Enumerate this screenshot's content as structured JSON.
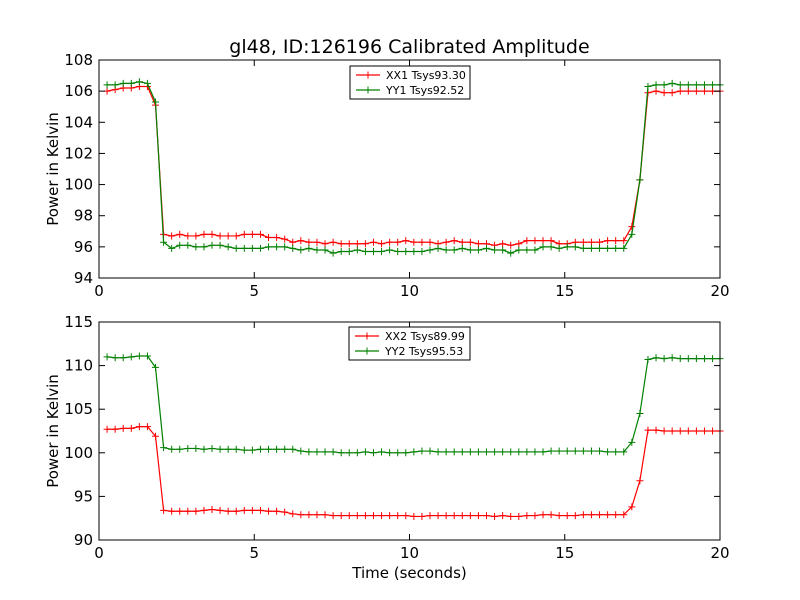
{
  "chart_data": [
    {
      "type": "line",
      "title": "gl48, ID:126196 Calibrated Amplitude",
      "xlabel": "",
      "ylabel": "Power in Kelvin",
      "xlim": [
        0,
        20
      ],
      "ylim": [
        94,
        108
      ],
      "xticks": [
        0,
        5,
        10,
        15,
        20
      ],
      "yticks": [
        94,
        96,
        98,
        100,
        102,
        104,
        106,
        108
      ],
      "grid": false,
      "legend_position": "top-center",
      "marker": "+",
      "x": [
        0.26,
        0.52,
        0.78,
        1.04,
        1.3,
        1.56,
        1.82,
        2.08,
        2.34,
        2.6,
        2.86,
        3.12,
        3.38,
        3.64,
        3.9,
        4.16,
        4.42,
        4.68,
        4.94,
        5.2,
        5.46,
        5.72,
        5.98,
        6.24,
        6.5,
        6.76,
        7.02,
        7.28,
        7.54,
        7.8,
        8.06,
        8.32,
        8.58,
        8.84,
        9.1,
        9.36,
        9.62,
        9.88,
        10.14,
        10.4,
        10.66,
        10.92,
        11.18,
        11.44,
        11.7,
        11.96,
        12.22,
        12.48,
        12.74,
        13.0,
        13.26,
        13.52,
        13.78,
        14.04,
        14.3,
        14.56,
        14.82,
        15.08,
        15.34,
        15.6,
        15.86,
        16.12,
        16.38,
        16.64,
        16.9,
        17.16,
        17.42,
        17.68,
        17.94,
        18.2,
        18.46,
        18.72,
        18.98,
        19.24,
        19.5,
        19.76,
        20.0
      ],
      "series": [
        {
          "name": "XX1 Tsys93.30",
          "color": "#ff0000",
          "values": [
            106.0,
            106.1,
            106.2,
            106.2,
            106.3,
            106.3,
            105.1,
            96.8,
            96.7,
            96.8,
            96.7,
            96.7,
            96.8,
            96.8,
            96.7,
            96.7,
            96.7,
            96.8,
            96.8,
            96.8,
            96.6,
            96.6,
            96.5,
            96.3,
            96.4,
            96.3,
            96.3,
            96.2,
            96.3,
            96.2,
            96.2,
            96.2,
            96.2,
            96.3,
            96.2,
            96.3,
            96.3,
            96.4,
            96.3,
            96.3,
            96.3,
            96.2,
            96.3,
            96.4,
            96.3,
            96.3,
            96.2,
            96.2,
            96.1,
            96.2,
            96.1,
            96.2,
            96.4,
            96.4,
            96.4,
            96.4,
            96.2,
            96.2,
            96.3,
            96.3,
            96.3,
            96.3,
            96.4,
            96.4,
            96.4,
            97.3,
            100.3,
            105.9,
            106.0,
            105.9,
            105.9,
            106.0,
            106.0,
            106.0,
            106.0,
            106.0,
            106.0
          ],
          "_note": "values index-aligned with x"
        },
        {
          "name": "YY1 Tsys92.52",
          "color": "#008000",
          "values": [
            106.4,
            106.4,
            106.5,
            106.5,
            106.6,
            106.5,
            105.3,
            96.3,
            95.9,
            96.1,
            96.1,
            96.0,
            96.0,
            96.1,
            96.1,
            96.0,
            95.9,
            95.9,
            95.9,
            95.9,
            96.0,
            96.0,
            96.0,
            95.9,
            95.8,
            95.9,
            95.8,
            95.8,
            95.6,
            95.7,
            95.7,
            95.8,
            95.7,
            95.7,
            95.7,
            95.8,
            95.7,
            95.7,
            95.7,
            95.7,
            95.8,
            95.9,
            95.8,
            95.8,
            95.9,
            95.8,
            95.8,
            95.9,
            95.8,
            95.8,
            95.6,
            95.8,
            95.8,
            95.8,
            96.0,
            96.0,
            95.9,
            96.0,
            96.0,
            95.9,
            95.9,
            95.9,
            95.9,
            95.9,
            95.9,
            96.8,
            100.3,
            106.3,
            106.4,
            106.4,
            106.5,
            106.4,
            106.4,
            106.4,
            106.4,
            106.4,
            106.4
          ]
        }
      ]
    },
    {
      "type": "line",
      "title": "",
      "xlabel": "Time (seconds)",
      "ylabel": "Power in Kelvin",
      "xlim": [
        0,
        20
      ],
      "ylim": [
        90,
        115
      ],
      "xticks": [
        0,
        5,
        10,
        15,
        20
      ],
      "yticks": [
        90,
        95,
        100,
        105,
        110,
        115
      ],
      "grid": false,
      "legend_position": "top-center",
      "marker": "+",
      "x": [
        0.26,
        0.52,
        0.78,
        1.04,
        1.3,
        1.56,
        1.82,
        2.08,
        2.34,
        2.6,
        2.86,
        3.12,
        3.38,
        3.64,
        3.9,
        4.16,
        4.42,
        4.68,
        4.94,
        5.2,
        5.46,
        5.72,
        5.98,
        6.24,
        6.5,
        6.76,
        7.02,
        7.28,
        7.54,
        7.8,
        8.06,
        8.32,
        8.58,
        8.84,
        9.1,
        9.36,
        9.62,
        9.88,
        10.14,
        10.4,
        10.66,
        10.92,
        11.18,
        11.44,
        11.7,
        11.96,
        12.22,
        12.48,
        12.74,
        13.0,
        13.26,
        13.52,
        13.78,
        14.04,
        14.3,
        14.56,
        14.82,
        15.08,
        15.34,
        15.6,
        15.86,
        16.12,
        16.38,
        16.64,
        16.9,
        17.16,
        17.42,
        17.68,
        17.94,
        18.2,
        18.46,
        18.72,
        18.98,
        19.24,
        19.5,
        19.76,
        20.0
      ],
      "series": [
        {
          "name": "XX2 Tsys89.99",
          "color": "#ff0000",
          "values": [
            102.7,
            102.7,
            102.8,
            102.8,
            103.0,
            103.0,
            101.9,
            93.4,
            93.3,
            93.3,
            93.3,
            93.3,
            93.4,
            93.5,
            93.4,
            93.3,
            93.3,
            93.4,
            93.4,
            93.4,
            93.3,
            93.3,
            93.2,
            93.0,
            92.9,
            92.9,
            92.9,
            92.9,
            92.8,
            92.8,
            92.8,
            92.8,
            92.8,
            92.8,
            92.8,
            92.8,
            92.8,
            92.8,
            92.7,
            92.7,
            92.8,
            92.8,
            92.8,
            92.8,
            92.8,
            92.8,
            92.8,
            92.8,
            92.7,
            92.8,
            92.7,
            92.7,
            92.8,
            92.8,
            92.9,
            92.9,
            92.8,
            92.8,
            92.8,
            92.9,
            92.9,
            92.9,
            92.9,
            92.9,
            92.9,
            93.8,
            96.8,
            102.6,
            102.6,
            102.5,
            102.5,
            102.5,
            102.5,
            102.5,
            102.5,
            102.5,
            102.5
          ]
        },
        {
          "name": "YY2 Tsys95.53",
          "color": "#008000",
          "values": [
            111.0,
            110.9,
            110.9,
            111.0,
            111.1,
            111.1,
            109.8,
            100.6,
            100.4,
            100.4,
            100.5,
            100.5,
            100.4,
            100.5,
            100.4,
            100.4,
            100.4,
            100.3,
            100.3,
            100.4,
            100.4,
            100.4,
            100.4,
            100.4,
            100.2,
            100.1,
            100.1,
            100.1,
            100.1,
            100.0,
            100.0,
            100.0,
            100.1,
            100.0,
            100.1,
            100.0,
            100.0,
            100.0,
            100.1,
            100.2,
            100.2,
            100.1,
            100.1,
            100.1,
            100.1,
            100.1,
            100.1,
            100.1,
            100.1,
            100.1,
            100.1,
            100.1,
            100.1,
            100.1,
            100.1,
            100.2,
            100.2,
            100.2,
            100.2,
            100.2,
            100.2,
            100.2,
            100.1,
            100.1,
            100.1,
            101.2,
            104.5,
            110.7,
            110.9,
            110.8,
            110.9,
            110.8,
            110.8,
            110.8,
            110.8,
            110.8,
            110.8
          ]
        }
      ]
    }
  ]
}
